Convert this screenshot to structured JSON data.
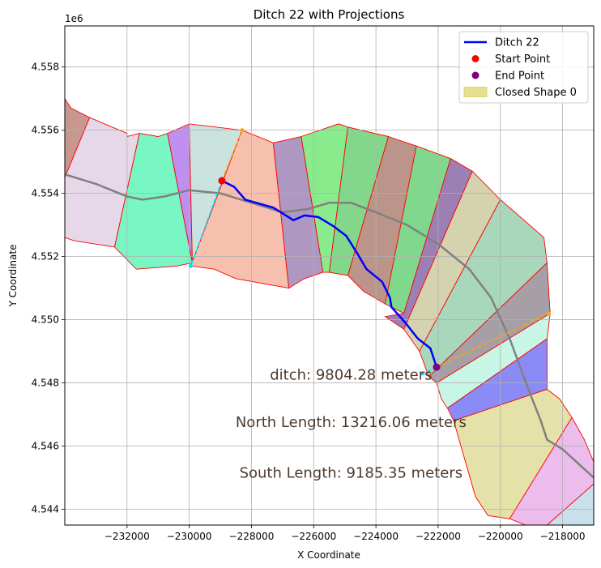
{
  "chart_data": {
    "type": "map-plot",
    "title": "Ditch 22 with Projections",
    "xlabel": "X Coordinate",
    "ylabel": "Y Coordinate",
    "y_offset_label": "1e6",
    "xlim": [
      -234000,
      -217000
    ],
    "ylim": [
      4.5435,
      4.5593
    ],
    "x_ticks": [
      -232000,
      -230000,
      -228000,
      -226000,
      -224000,
      -222000,
      -220000,
      -218000
    ],
    "x_tick_labels": [
      "−232000",
      "−230000",
      "−228000",
      "−226000",
      "−224000",
      "−222000",
      "−220000",
      "−218000"
    ],
    "y_ticks": [
      4.544,
      4.546,
      4.548,
      4.55,
      4.552,
      4.554,
      4.556,
      4.558
    ],
    "y_tick_labels": [
      "4.544",
      "4.546",
      "4.548",
      "4.550",
      "4.552",
      "4.554",
      "4.556",
      "4.558"
    ],
    "grid": true,
    "legend_position": "top-right",
    "legend": [
      {
        "label": "Ditch 22",
        "kind": "line",
        "color": "#0000ff"
      },
      {
        "label": "Start Point",
        "kind": "dot",
        "color": "#ff0000"
      },
      {
        "label": "End Point",
        "kind": "dot",
        "color": "#800080"
      },
      {
        "label": "Closed Shape 0",
        "kind": "patch",
        "color": "#dcd66a"
      }
    ],
    "annotations": [
      {
        "text": "ditch: 9804.28 meters",
        "x": -224800,
        "y": 4.5481
      },
      {
        "text": "North Length: 13216.06 meters",
        "x": -224800,
        "y": 4.5466
      },
      {
        "text": "South Length: 9185.35 meters",
        "x": -224800,
        "y": 4.545
      }
    ],
    "ditch": {
      "name": "Ditch 22",
      "color": "#0000ff",
      "points": [
        [
          -228950,
          4.5544
        ],
        [
          -228550,
          4.5542
        ],
        [
          -228200,
          4.5538
        ],
        [
          -227300,
          4.55355
        ],
        [
          -226650,
          4.55315
        ],
        [
          -226300,
          4.5533
        ],
        [
          -225850,
          4.55325
        ],
        [
          -225350,
          4.55295
        ],
        [
          -224950,
          4.55265
        ],
        [
          -224600,
          4.5521
        ],
        [
          -224300,
          4.5516
        ],
        [
          -223800,
          4.5512
        ],
        [
          -223550,
          4.5507
        ],
        [
          -223500,
          4.5504
        ],
        [
          -223050,
          4.5499
        ],
        [
          -222650,
          4.5494
        ],
        [
          -222250,
          4.5491
        ],
        [
          -222050,
          4.5485
        ]
      ]
    },
    "start_point": {
      "x": -228950,
      "y": 4.5544,
      "color": "#ff0000"
    },
    "end_point": {
      "x": -222050,
      "y": 4.5485,
      "color": "#800080"
    },
    "centerline": {
      "color": "#808080",
      "points": [
        [
          -234000,
          4.5546
        ],
        [
          -233000,
          4.5543
        ],
        [
          -232000,
          4.5539
        ],
        [
          -231500,
          4.5538
        ],
        [
          -230800,
          4.5539
        ],
        [
          -230000,
          4.5541
        ],
        [
          -229000,
          4.554
        ],
        [
          -228000,
          4.5537
        ],
        [
          -227000,
          4.5534
        ],
        [
          -226200,
          4.5535
        ],
        [
          -225500,
          4.5537
        ],
        [
          -224800,
          4.5537
        ],
        [
          -224000,
          4.5534
        ],
        [
          -223000,
          4.553
        ],
        [
          -222000,
          4.5524
        ],
        [
          -221000,
          4.5516
        ],
        [
          -220300,
          4.5507
        ],
        [
          -219700,
          4.5494
        ],
        [
          -219100,
          4.5478
        ],
        [
          -218700,
          4.5468
        ],
        [
          -218500,
          4.5462
        ],
        [
          -218000,
          4.5459
        ],
        [
          -217000,
          4.545
        ]
      ]
    },
    "projections": [
      {
        "color": "#ffa500",
        "points": [
          [
            -228950,
            4.5544
          ],
          [
            -228300,
            4.556
          ]
        ]
      },
      {
        "color": "#00e5ff",
        "points": [
          [
            -228950,
            4.5544
          ],
          [
            -229950,
            4.5517
          ]
        ]
      },
      {
        "color": "#ffa500",
        "points": [
          [
            -222050,
            4.5485
          ],
          [
            -218450,
            4.5502
          ]
        ]
      },
      {
        "color": "#00e5ff",
        "points": [
          [
            -222050,
            4.5485
          ],
          [
            -222500,
            4.5483
          ]
        ]
      }
    ],
    "shapes": [
      {
        "fill": "#c89890",
        "points": [
          [
            -234000,
            4.557
          ],
          [
            -233800,
            4.5567
          ],
          [
            -233200,
            4.5564
          ],
          [
            -234000,
            4.5545
          ]
        ]
      },
      {
        "fill": "#e6d8e8",
        "points": [
          [
            -233200,
            4.5564
          ],
          [
            -232000,
            4.5559
          ],
          [
            -232000,
            4.5558
          ],
          [
            -231600,
            4.5559
          ],
          [
            -232400,
            4.5523
          ],
          [
            -233700,
            4.5525
          ],
          [
            -234000,
            4.5526
          ],
          [
            -234000,
            4.5545
          ]
        ]
      },
      {
        "fill": "#78f7c5",
        "points": [
          [
            -231600,
            4.5559
          ],
          [
            -231000,
            4.5558
          ],
          [
            -230700,
            4.5559
          ],
          [
            -229900,
            4.5518
          ],
          [
            -230400,
            4.5517
          ],
          [
            -231700,
            4.5516
          ],
          [
            -232400,
            4.5523
          ]
        ]
      },
      {
        "fill": "#bf8ff0",
        "points": [
          [
            -230700,
            4.5559
          ],
          [
            -230000,
            4.5562
          ],
          [
            -229900,
            4.5518
          ]
        ]
      },
      {
        "fill": "#cbe3df",
        "points": [
          [
            -230000,
            4.5562
          ],
          [
            -228300,
            4.556
          ],
          [
            -229950,
            4.5517
          ],
          [
            -229900,
            4.5518
          ]
        ]
      },
      {
        "fill": "#f7c0ae",
        "points": [
          [
            -228300,
            4.556
          ],
          [
            -227300,
            4.5556
          ],
          [
            -226800,
            4.551
          ],
          [
            -228500,
            4.5513
          ],
          [
            -229200,
            4.5516
          ],
          [
            -229950,
            4.5517
          ]
        ]
      },
      {
        "fill": "#ae98c2",
        "points": [
          [
            -227300,
            4.5556
          ],
          [
            -226400,
            4.5558
          ],
          [
            -225700,
            4.5515
          ],
          [
            -226300,
            4.5513
          ],
          [
            -226800,
            4.551
          ]
        ]
      },
      {
        "fill": "#88ec8c",
        "points": [
          [
            -226400,
            4.5558
          ],
          [
            -225200,
            4.5562
          ],
          [
            -224900,
            4.5561
          ],
          [
            -225500,
            4.5515
          ],
          [
            -225700,
            4.5515
          ]
        ]
      },
      {
        "fill": "#82d78a",
        "points": [
          [
            -224900,
            4.5561
          ],
          [
            -223600,
            4.5558
          ],
          [
            -224900,
            4.5514
          ],
          [
            -225500,
            4.5515
          ]
        ]
      },
      {
        "fill": "#bb958a",
        "points": [
          [
            -223600,
            4.5558
          ],
          [
            -222700,
            4.5555
          ],
          [
            -223700,
            4.5505
          ],
          [
            -224400,
            4.5509
          ],
          [
            -224900,
            4.5514
          ]
        ]
      },
      {
        "fill": "#80d88c",
        "points": [
          [
            -222700,
            4.5555
          ],
          [
            -221600,
            4.5551
          ],
          [
            -223100,
            4.5502
          ],
          [
            -223700,
            4.5505
          ]
        ]
      },
      {
        "fill": "#9c80b4",
        "points": [
          [
            -221600,
            4.5551
          ],
          [
            -220900,
            4.5547
          ],
          [
            -223100,
            4.5497
          ],
          [
            -223700,
            4.5501
          ],
          [
            -223100,
            4.5502
          ]
        ]
      },
      {
        "fill": "#d5d2b0",
        "points": [
          [
            -220900,
            4.5547
          ],
          [
            -220000,
            4.5538
          ],
          [
            -222600,
            4.549
          ],
          [
            -223100,
            4.5497
          ]
        ]
      },
      {
        "fill": "#a8d7bc",
        "points": [
          [
            -220000,
            4.5538
          ],
          [
            -218600,
            4.5526
          ],
          [
            -218500,
            4.5518
          ],
          [
            -222300,
            4.5482
          ],
          [
            -222600,
            4.549
          ]
        ]
      },
      {
        "fill": "#a6a0a6",
        "points": [
          [
            -218500,
            4.5518
          ],
          [
            -218400,
            4.5502
          ],
          [
            -222050,
            4.548
          ],
          [
            -222300,
            4.5482
          ]
        ]
      },
      {
        "fill": "#c8f6e6",
        "points": [
          [
            -218400,
            4.5502
          ],
          [
            -218500,
            4.5494
          ],
          [
            -221700,
            4.5472
          ],
          [
            -221900,
            4.5475
          ],
          [
            -222050,
            4.548
          ]
        ]
      },
      {
        "fill": "#8a8bf7",
        "points": [
          [
            -218500,
            4.5494
          ],
          [
            -218500,
            4.5478
          ],
          [
            -221500,
            4.5468
          ],
          [
            -221700,
            4.5472
          ]
        ]
      },
      {
        "fill": "#e4e2a8",
        "points": [
          [
            -218500,
            4.5478
          ],
          [
            -218100,
            4.5475
          ],
          [
            -217700,
            4.5469
          ],
          [
            -219700,
            4.5437
          ],
          [
            -220400,
            4.5438
          ],
          [
            -220800,
            4.5444
          ],
          [
            -221500,
            4.5468
          ]
        ]
      },
      {
        "fill": "#ecbcec",
        "points": [
          [
            -217700,
            4.5469
          ],
          [
            -217300,
            4.5462
          ],
          [
            -217000,
            4.5455
          ],
          [
            -217000,
            4.5448
          ],
          [
            -218500,
            4.5435
          ],
          [
            -219200,
            4.5435
          ],
          [
            -219700,
            4.5437
          ]
        ]
      },
      {
        "fill": "#c8dfec",
        "points": [
          [
            -217000,
            4.5448
          ],
          [
            -218500,
            4.5435
          ],
          [
            -217000,
            4.5435
          ]
        ]
      }
    ]
  }
}
